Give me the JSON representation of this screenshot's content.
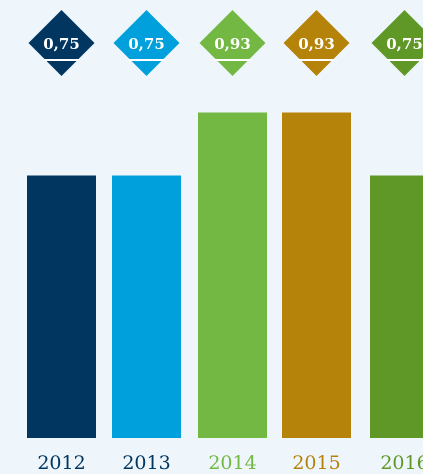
{
  "chart_data": {
    "type": "bar",
    "categories": [
      "2012",
      "2013",
      "2014",
      "2015",
      "2016"
    ],
    "values": [
      0.75,
      0.75,
      0.93,
      0.93,
      0.75
    ],
    "data_labels": [
      "0,75",
      "0,75",
      "0,93",
      "0,93",
      "0,75"
    ],
    "colors": [
      "#003660",
      "#00a0dc",
      "#72b843",
      "#b5820a",
      "#609827"
    ],
    "ylim": [
      0,
      1.2
    ],
    "grid": false,
    "title": "",
    "xlabel": "",
    "ylabel": ""
  }
}
